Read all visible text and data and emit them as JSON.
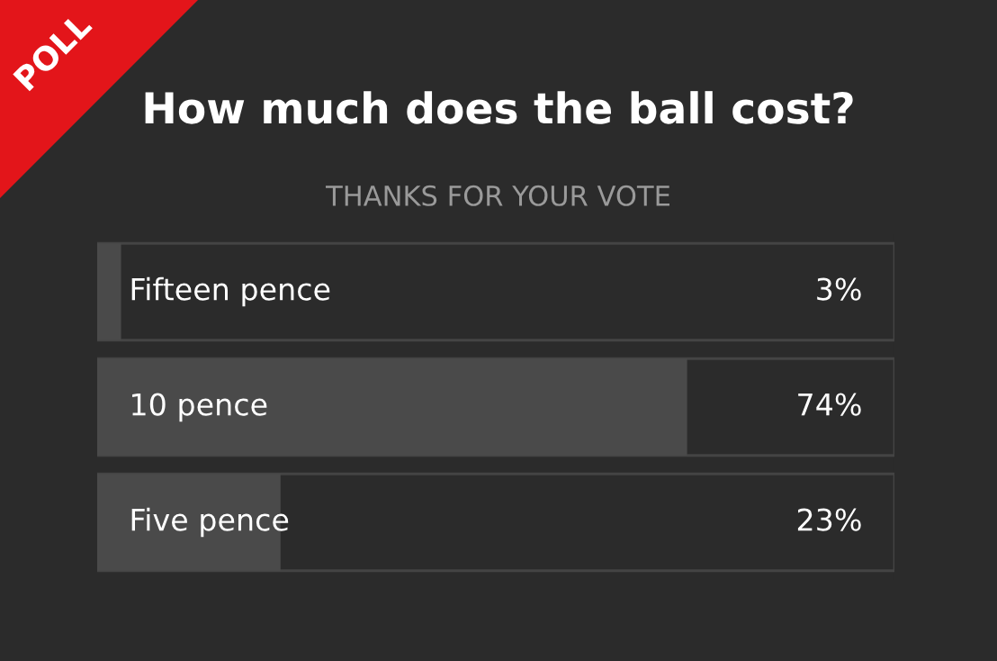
{
  "chart_data": {
    "type": "bar",
    "orientation": "horizontal",
    "title": "How much does the ball cost?",
    "subtitle": "THANKS FOR YOUR VOTE",
    "categories": [
      "Fifteen pence",
      "10 pence",
      "Five pence"
    ],
    "values": [
      3,
      74,
      23
    ],
    "color": "#4a4a4a",
    "xlim": [
      0,
      100
    ],
    "value_labels": [
      "3%",
      "74%",
      "23%"
    ],
    "annotations": [
      "POLL"
    ]
  }
}
